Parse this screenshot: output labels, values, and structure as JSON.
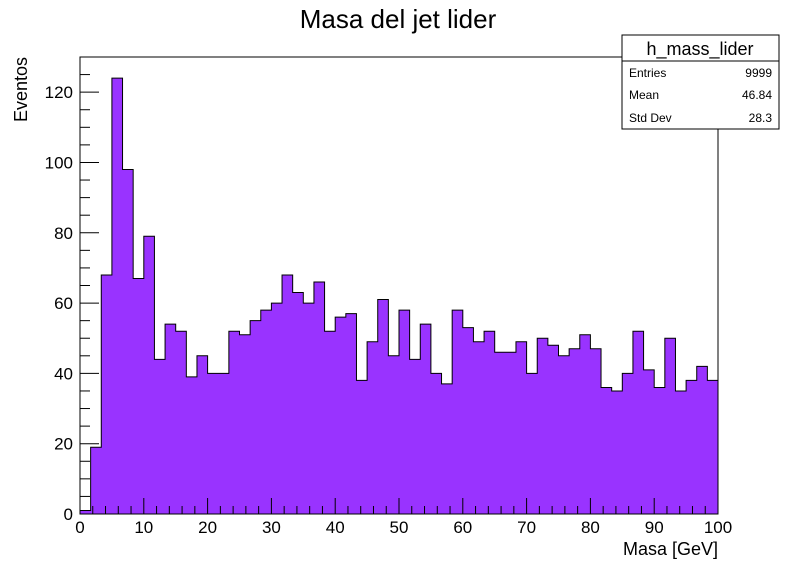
{
  "chart_data": {
    "type": "bar",
    "title": "Masa del jet lider",
    "xlabel": "Masa [GeV]",
    "ylabel": "Eventos",
    "xlim": [
      0,
      100
    ],
    "ylim": [
      0,
      130
    ],
    "bin_width": 1.6667,
    "fill_color": "#9933ff",
    "x_ticks": [
      "0",
      "10",
      "20",
      "30",
      "40",
      "50",
      "60",
      "70",
      "80",
      "90",
      "100"
    ],
    "y_ticks": [
      "0",
      "20",
      "40",
      "60",
      "80",
      "100",
      "120"
    ],
    "values": [
      1,
      19,
      68,
      124,
      98,
      67,
      79,
      44,
      54,
      52,
      39,
      45,
      40,
      40,
      52,
      51,
      55,
      58,
      60,
      68,
      63,
      60,
      66,
      52,
      56,
      57,
      38,
      49,
      61,
      45,
      58,
      44,
      54,
      40,
      37,
      58,
      53,
      49,
      52,
      46,
      46,
      49,
      40,
      50,
      48,
      45,
      47,
      51,
      47,
      36,
      35,
      40,
      52,
      41,
      36,
      50,
      35,
      38,
      42,
      38
    ]
  },
  "stats_box": {
    "name": "h_mass_lider",
    "rows": [
      {
        "label": "Entries",
        "value": "9999"
      },
      {
        "label": "Mean",
        "value": "46.84"
      },
      {
        "label": "Std Dev",
        "value": "28.3"
      }
    ]
  }
}
